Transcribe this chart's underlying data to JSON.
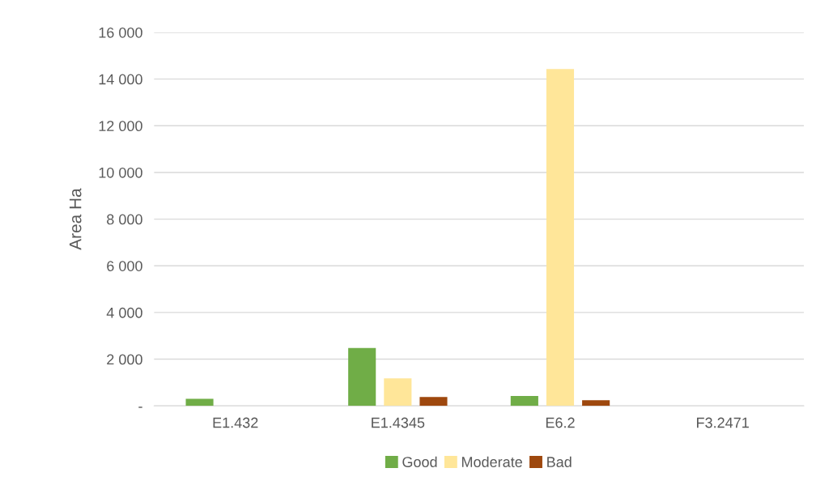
{
  "chart_data": {
    "type": "bar",
    "ylabel": "Area Ha",
    "categories": [
      "E1.432",
      "E1.4345",
      "E6.2",
      "F3.2471"
    ],
    "series": [
      {
        "name": "Good",
        "color": "#70ad47",
        "values": [
          300,
          2480,
          420,
          0
        ]
      },
      {
        "name": "Moderate",
        "color": "#ffe699",
        "values": [
          0,
          1180,
          14430,
          0
        ]
      },
      {
        "name": "Bad",
        "color": "#9e480e",
        "values": [
          0,
          380,
          240,
          0
        ]
      }
    ],
    "ylim": [
      0,
      16000
    ],
    "yticks": [
      {
        "value": 0,
        "label": "-"
      },
      {
        "value": 2000,
        "label": "2 000"
      },
      {
        "value": 4000,
        "label": "4 000"
      },
      {
        "value": 6000,
        "label": "6 000"
      },
      {
        "value": 8000,
        "label": "8 000"
      },
      {
        "value": 10000,
        "label": "10 000"
      },
      {
        "value": 12000,
        "label": "12 000"
      },
      {
        "value": 14000,
        "label": "14 000"
      },
      {
        "value": 16000,
        "label": "16 000"
      }
    ],
    "grid": "y",
    "legend": "bottom"
  }
}
